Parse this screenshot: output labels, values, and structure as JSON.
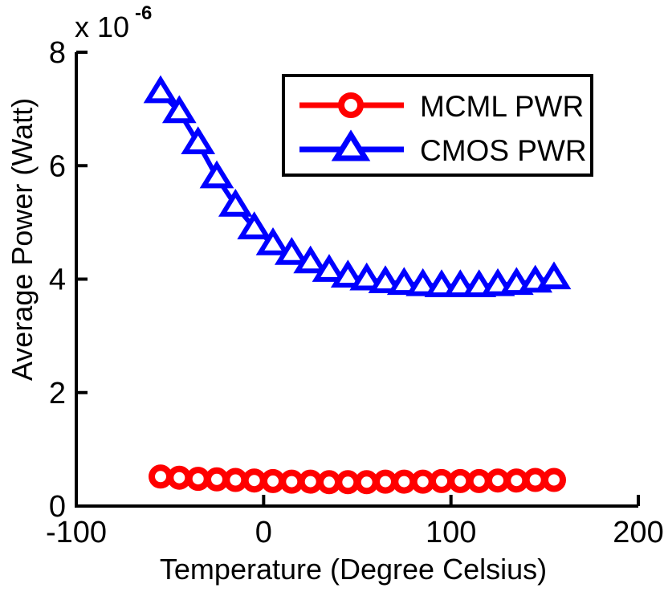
{
  "figure": {
    "background_color": "#ffffff",
    "y_axis_multiplier_base": "x 10",
    "y_axis_multiplier_exponent": "-6"
  },
  "chart_data": {
    "type": "line",
    "title": "",
    "xlabel": "Temperature  (Degree Celsius)",
    "ylabel": "Average Power  (Watt)",
    "x_unit": "Degree Celsius",
    "y_unit": "Watt",
    "y_value_scale": "1e-6",
    "xlim": [
      -100,
      200
    ],
    "ylim_display": [
      0,
      8
    ],
    "x_ticks": [
      -100,
      0,
      100,
      200
    ],
    "y_ticks": [
      0,
      2,
      4,
      6,
      8
    ],
    "grid": false,
    "legend_position": "upper-right-inside",
    "axis_color": "#000000",
    "x": [
      -55,
      -45,
      -35,
      -25,
      -15,
      -5,
      5,
      15,
      25,
      35,
      45,
      55,
      65,
      75,
      85,
      95,
      105,
      115,
      125,
      135,
      145,
      155
    ],
    "series": [
      {
        "name": "MCML PWR",
        "color": "#ff0000",
        "marker": "circle",
        "values": [
          0.52,
          0.5,
          0.48,
          0.47,
          0.46,
          0.45,
          0.44,
          0.43,
          0.43,
          0.42,
          0.42,
          0.42,
          0.43,
          0.43,
          0.43,
          0.44,
          0.44,
          0.44,
          0.45,
          0.45,
          0.46,
          0.46
        ]
      },
      {
        "name": "CMOS PWR",
        "color": "#0000ff",
        "marker": "triangle",
        "values": [
          7.3,
          6.95,
          6.4,
          5.8,
          5.3,
          4.9,
          4.62,
          4.45,
          4.3,
          4.15,
          4.05,
          4.0,
          3.95,
          3.92,
          3.9,
          3.88,
          3.88,
          3.88,
          3.9,
          3.92,
          3.96,
          4.02
        ]
      }
    ]
  }
}
